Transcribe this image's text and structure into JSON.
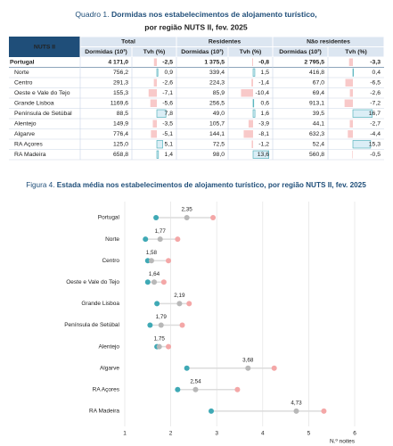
{
  "table": {
    "label": "Quadro 1.",
    "title": [
      "Dormidas nos estabelecimentos de alojamento turístico,",
      "por região NUTS II, fev. 2025"
    ],
    "header": [
      "NUTS II",
      "Total",
      "Residentes",
      "Não residentes"
    ],
    "subheader": [
      "Dormidas (10³)",
      "Tvh (%)",
      "Dormidas (10³)",
      "Tvh (%)",
      "Dormidas (10³)",
      "Tvh (%)"
    ],
    "rows": [
      [
        "Portugal",
        "4 171,0",
        "-2,5",
        "1 375,5",
        "-0,8",
        "2 795,5",
        "-3,3"
      ],
      [
        "Norte",
        "756,2",
        "0,9",
        "339,4",
        "1,5",
        "416,8",
        "0,4"
      ],
      [
        "Centro",
        "291,3",
        "-2,6",
        "224,3",
        "-1,4",
        "67,0",
        "-6,5"
      ],
      [
        "Oeste e Vale do Tejo",
        "155,3",
        "-7,1",
        "85,9",
        "-10,4",
        "69,4",
        "-2,6"
      ],
      [
        "Grande Lisboa",
        "1169,6",
        "-5,6",
        "256,5",
        "0,6",
        "913,1",
        "-7,2"
      ],
      [
        "Península de Setúbal",
        "88,5",
        "7,8",
        "49,0",
        "1,6",
        "39,5",
        "16,7"
      ],
      [
        "Alentejo",
        "149,9",
        "-3,5",
        "105,7",
        "-3,9",
        "44,1",
        "-2,7"
      ],
      [
        "Algarve",
        "776,4",
        "-5,1",
        "144,1",
        "-8,1",
        "632,3",
        "-4,4"
      ],
      [
        "RA Açores",
        "125,0",
        "5,1",
        "72,5",
        "-1,2",
        "52,4",
        "15,3"
      ],
      [
        "RA Madeira",
        "658,8",
        "1,4",
        "98,0",
        "13,6",
        "560,8",
        "-0,5"
      ]
    ]
  },
  "chart_data": {
    "type": "dot",
    "label": "Figura 4.",
    "title": "Estada média nos estabelecimentos de alojamento turístico, por região NUTS II, fev. 2025",
    "xlabel": "N.º noites",
    "categories": [
      "Portugal",
      "Norte",
      "Centro",
      "Oeste e Vale do Tejo",
      "Grande Lisboa",
      "Península de Setúbal",
      "Alentejo",
      "Algarve",
      "RA Açores",
      "RA Madeira"
    ],
    "series": [
      {
        "color": "#3fa9b5",
        "values": [
          1.68,
          1.45,
          1.5,
          1.5,
          1.7,
          1.55,
          1.7,
          2.35,
          2.15,
          2.88
        ]
      },
      {
        "color": "#b8b8b8",
        "values": [
          2.35,
          1.77,
          1.58,
          1.64,
          2.19,
          1.79,
          1.75,
          3.68,
          2.54,
          4.73
        ],
        "value_labels": [
          "2,35",
          "1,77",
          "1,58",
          "1,64",
          "2,19",
          "1,79",
          "1,75",
          "3,68",
          "2,54",
          "4,73"
        ]
      },
      {
        "color": "#f4a7a7",
        "values": [
          2.92,
          2.15,
          1.95,
          1.85,
          2.4,
          2.25,
          1.95,
          4.25,
          3.45,
          5.33
        ]
      }
    ],
    "xlim": [
      1,
      6
    ],
    "xticks": [
      1,
      2,
      3,
      4,
      5,
      6
    ],
    "grid": true
  }
}
